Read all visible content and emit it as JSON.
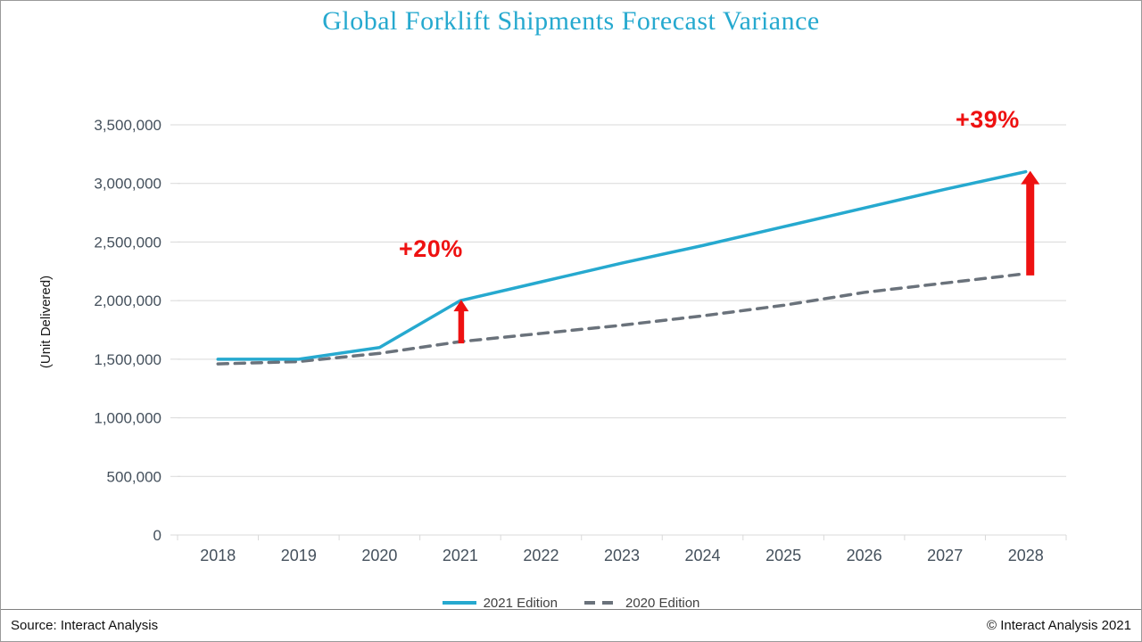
{
  "title": "Global Forklift Shipments Forecast Variance",
  "y_axis_title": "(Unit Delivered)",
  "colors": {
    "accent_cyan": "#26a9cf",
    "series_gray": "#6a727b",
    "arrow_red": "#ee1111",
    "grid": "#d9d9d9",
    "tick_text": "#44505c"
  },
  "legend": {
    "items": [
      {
        "label": "2021 Edition",
        "style": "solid",
        "color": "#26a9cf"
      },
      {
        "label": "2020 Edition",
        "style": "dashed",
        "color": "#6a727b"
      }
    ]
  },
  "footer": {
    "source": "Source: Interact Analysis",
    "copyright": "© Interact Analysis 2021"
  },
  "chart_data": {
    "type": "line",
    "title": "Global Forklift Shipments Forecast Variance",
    "ylabel": "(Unit Delivered)",
    "categories": [
      "2018",
      "2019",
      "2020",
      "2021",
      "2022",
      "2023",
      "2024",
      "2025",
      "2026",
      "2027",
      "2028"
    ],
    "series": [
      {
        "name": "2021 Edition",
        "style": "solid",
        "color": "#26a9cf",
        "values": [
          1500000,
          1500000,
          1600000,
          2000000,
          2160000,
          2320000,
          2470000,
          2630000,
          2790000,
          2950000,
          3100000
        ]
      },
      {
        "name": "2020 Edition",
        "style": "dashed",
        "color": "#6a727b",
        "values": [
          1460000,
          1480000,
          1550000,
          1650000,
          1720000,
          1790000,
          1870000,
          1960000,
          2070000,
          2150000,
          2230000
        ]
      }
    ],
    "ylim": [
      0,
      3500000
    ],
    "ytick_step": 500000,
    "grid": true,
    "legend_position": "bottom",
    "annotations": [
      {
        "text": "+20%",
        "year": "2021"
      },
      {
        "text": "+39%",
        "year": "2028"
      }
    ]
  }
}
